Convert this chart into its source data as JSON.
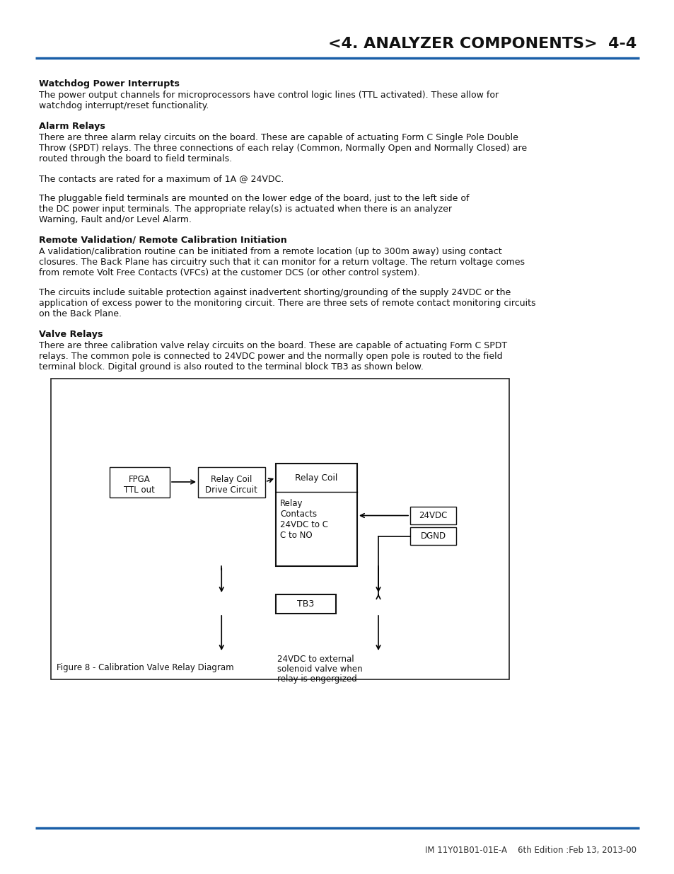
{
  "title": "<4. ANALYZER COMPONENTS>  4-4",
  "title_color": "#111111",
  "header_line_color": "#1a5fa8",
  "footer_line_color": "#1a5fa8",
  "footer_text": "IM 11Y01B01-01E-A    6th Edition :Feb 13, 2013-00",
  "bg_color": "#ffffff",
  "section1_heading": "Watchdog Power Interrupts",
  "section1_body": "The power output channels for microprocessors have control logic lines (TTL activated). These allow for\nwatchdog interrupt/reset functionality.",
  "section2_heading": "Alarm Relays",
  "section2_body1": "There are three alarm relay circuits on the board. These are capable of actuating Form C Single Pole Double\nThrow (SPDT) relays. The three connections of each relay (Common, Normally Open and Normally Closed) are\nrouted through the board to field terminals.",
  "section2_body2": "The contacts are rated for a maximum of 1A @ 24VDC.",
  "section2_body3": "The pluggable field terminals are mounted on the lower edge of the board, just to the left side of\nthe DC power input terminals. The appropriate relay(s) is actuated when there is an analyzer\nWarning, Fault and/or Level Alarm.",
  "section3_heading": "Remote Validation/ Remote Calibration Initiation",
  "section3_body1": "A validation/calibration routine can be initiated from a remote location (up to 300m away) using contact\nclosures. The Back Plane has circuitry such that it can monitor for a return voltage. The return voltage comes\nfrom remote Volt Free Contacts (VFCs) at the customer DCS (or other control system).",
  "section3_body2": "The circuits include suitable protection against inadvertent shorting/grounding of the supply 24VDC or the\napplication of excess power to the monitoring circuit. There are three sets of remote contact monitoring circuits\non the Back Plane.",
  "section4_heading": "Valve Relays",
  "section4_body": "There are three calibration valve relay circuits on the board. These are capable of actuating Form C SPDT\nrelays. The common pole is connected to 24VDC power and the normally open pole is routed to the field\nterminal block. Digital ground is also routed to the terminal block TB3 as shown below.",
  "figure_caption": "Figure 8 - Calibration Valve Relay Diagram"
}
